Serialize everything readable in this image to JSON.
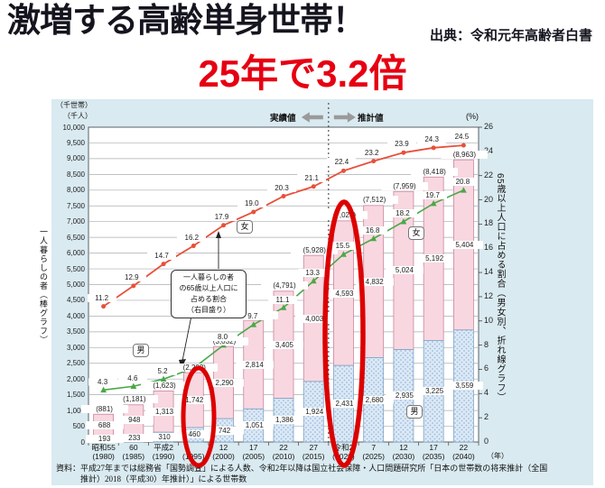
{
  "header": {
    "title": "激増する高齢単身世帯！",
    "source": "出典：令和元年高齢者白書",
    "highlight": "25年で3.2倍"
  },
  "colors": {
    "title_text": "#15151f",
    "highlight_red": "#e60012",
    "panel_bg": "#d9eaf0",
    "red_line": "#e8503a",
    "green_line": "#4aa848",
    "pink_bar": "#f8d7e0",
    "pink_border": "#c9849e",
    "blue_bar": "#dce9f6",
    "blue_border": "#7fa3c8",
    "blue_dot": "#9cbcdc",
    "oval_red": "#dd0000",
    "arrow_gray": "#9a9a9a"
  },
  "chart_data": {
    "type": "bar",
    "subtype": "stacked bars with two percentage lines",
    "x_axis": {
      "unit": "（年）",
      "categories_era": [
        "昭和55",
        "60",
        "平成2",
        "7",
        "12",
        "17",
        "22",
        "27",
        "令和2",
        "7",
        "12",
        "17",
        "22"
      ],
      "categories_year": [
        "(1980)",
        "(1985)",
        "(1990)",
        "(1995)",
        "(2000)",
        "(2005)",
        "(2010)",
        "(2015)",
        "(2020)",
        "(2025)",
        "(2030)",
        "(2035)",
        "(2040)"
      ]
    },
    "left_axis": {
      "unit1": "（千世帯）",
      "unit2": "（千人）",
      "label": "一人暮らしの者（棒グラフ）",
      "min": 0,
      "max": 10000,
      "tick_step": 500
    },
    "right_axis": {
      "unit": "(%)",
      "label": "65歳以上人口に占める割合（男女別、折れ線グラフ）",
      "min": 0,
      "max": 26,
      "tick_step": 2
    },
    "bars": {
      "male": {
        "label": "男",
        "values": [
          193,
          233,
          310,
          460,
          742,
          1051,
          1386,
          1924,
          2431,
          2680,
          2935,
          3225,
          3559
        ]
      },
      "female": {
        "label": "女",
        "values": [
          688,
          948,
          1313,
          1742,
          2290,
          2814,
          3405,
          4003,
          4593,
          4832,
          5024,
          5192,
          5404
        ]
      },
      "totals": [
        881,
        1181,
        1623,
        2202,
        3032,
        3865,
        4791,
        5928,
        7025,
        7512,
        7959,
        8418,
        8963
      ]
    },
    "series": [
      {
        "name": "女（65歳以上人口に占める割合）",
        "label": "女",
        "values": [
          11.2,
          12.9,
          14.7,
          16.2,
          17.9,
          19.0,
          20.3,
          21.1,
          22.4,
          23.2,
          23.9,
          24.3,
          24.5
        ]
      },
      {
        "name": "男（65歳以上人口に占める割合）",
        "label": "男",
        "values": [
          4.3,
          4.6,
          5.2,
          6.1,
          8.0,
          9.7,
          11.1,
          13.3,
          15.5,
          16.8,
          18.2,
          19.7,
          20.8
        ]
      }
    ],
    "annotations": {
      "actual": "実績値",
      "estimated": "推計値",
      "note_box": "一人暮らしの者\nの65歳以上人口に\n占める割合\n（右目盛り）",
      "divider_after_index": 7
    }
  },
  "footer": "資料：平成27年までは総務省「国勢調査」による人数、令和2年以降は国立社会保障・人口問題研究所「日本の世帯数の将来推計（全国\n推計）2018（平成30）年推計）」による世帯数"
}
